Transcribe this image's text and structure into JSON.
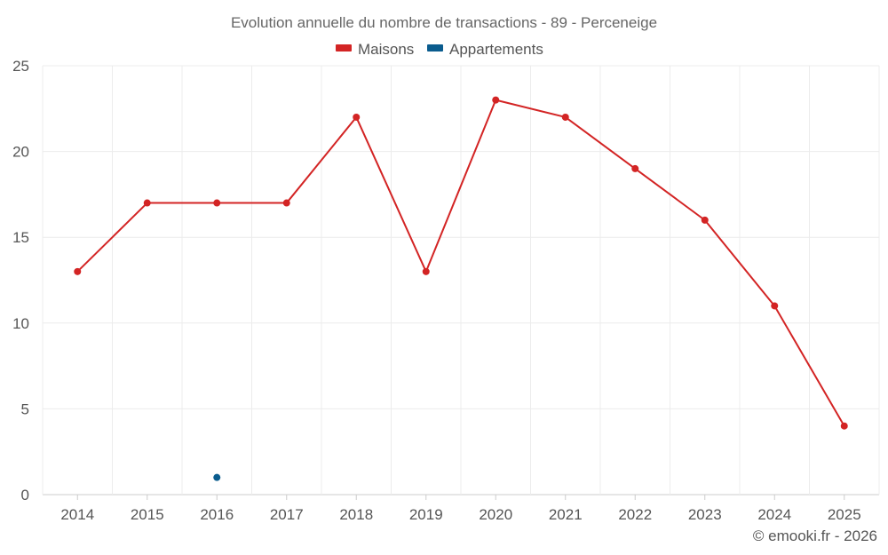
{
  "colors": {
    "maisons": "#d32424",
    "appartements": "#0a5c8e",
    "grid": "#ececec"
  },
  "chart_data": {
    "type": "line",
    "title": "Evolution annuelle du nombre de transactions - 89 - Perceneige",
    "categories": [
      "2014",
      "2015",
      "2016",
      "2017",
      "2018",
      "2019",
      "2020",
      "2021",
      "2022",
      "2023",
      "2024",
      "2025"
    ],
    "series": [
      {
        "name": "Maisons",
        "color_key": "maisons",
        "values": [
          13,
          17,
          17,
          17,
          22,
          13,
          23,
          22,
          19,
          16,
          11,
          4
        ]
      },
      {
        "name": "Appartements",
        "color_key": "appartements",
        "values": [
          null,
          null,
          1,
          null,
          null,
          null,
          null,
          null,
          null,
          null,
          null,
          null
        ]
      }
    ],
    "ylim": [
      0,
      25
    ],
    "yticks": [
      0,
      5,
      10,
      15,
      20,
      25
    ],
    "legend": "top-center",
    "grid": true,
    "xlabel": "",
    "ylabel": ""
  },
  "credit": "© emooki.fr - 2026"
}
